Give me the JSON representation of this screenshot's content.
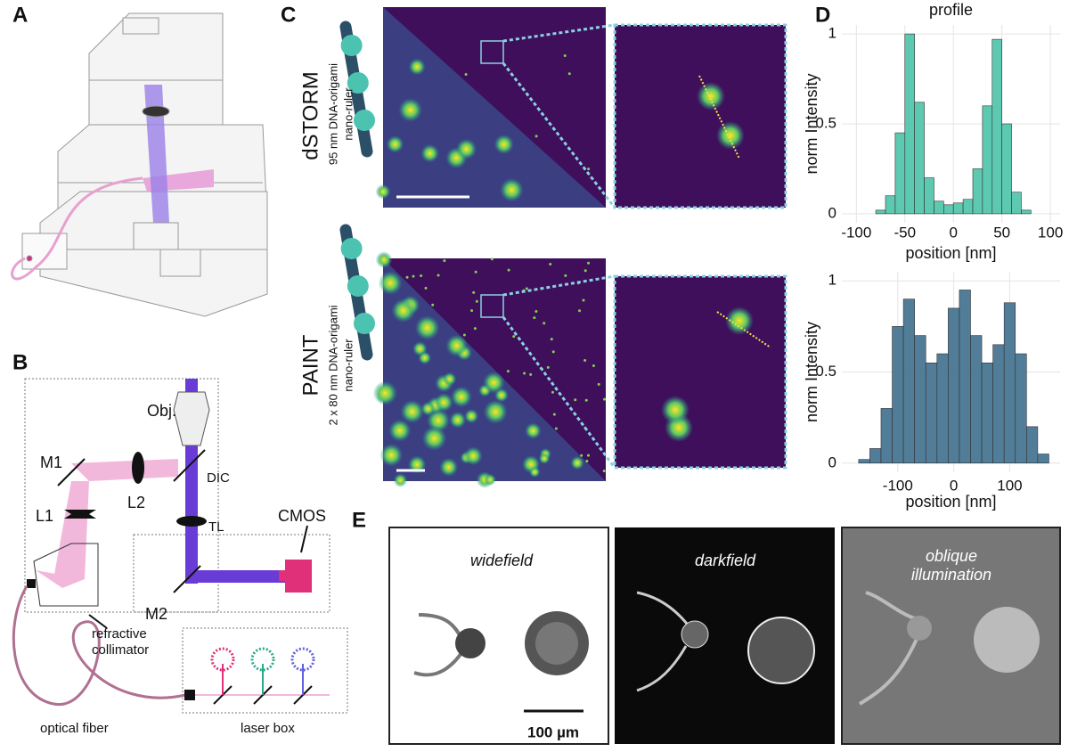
{
  "panel_labels": [
    "A",
    "B",
    "C",
    "D",
    "E"
  ],
  "panel_b": {
    "m1": "M1",
    "l1": "L1",
    "l2": "L2",
    "obj": "Obj.",
    "dic": "DIC",
    "tl": "TL",
    "cmos": "CMOS",
    "m2": "M2",
    "collimator": [
      "refractive",
      "collimator"
    ],
    "fiber": "optical fiber",
    "laser_box": "laser box"
  },
  "panel_c": {
    "rows": [
      {
        "method": "dSTORM",
        "sample": [
          "95 nm DNA-origami",
          "nano-ruler"
        ]
      },
      {
        "method": "PAINT",
        "sample": [
          "2 x 80 nm DNA-origami",
          "nano-ruler"
        ]
      }
    ]
  },
  "chart_data": [
    {
      "type": "histogram",
      "title": "profile",
      "x_label": "position [nm]",
      "y_label": "norm Intensity",
      "color": "#4cc3a8",
      "grid": true,
      "bins": [
        -80,
        -70,
        -60,
        -50,
        -40,
        -30,
        -20,
        -10,
        0,
        10,
        20,
        30,
        40,
        50,
        60,
        70,
        80
      ],
      "values": [
        0.02,
        0.1,
        0.45,
        1.0,
        0.62,
        0.2,
        0.07,
        0.05,
        0.06,
        0.08,
        0.25,
        0.6,
        0.97,
        0.5,
        0.12,
        0.02
      ],
      "xlim": [
        -115,
        110
      ],
      "xticks": [
        -100,
        -50,
        0,
        50,
        100
      ],
      "ylim": [
        -0.05,
        1.05
      ],
      "yticks": [
        0,
        0.5,
        1
      ]
    },
    {
      "type": "histogram",
      "x_label": "position [nm]",
      "y_label": "norm Intensity",
      "color": "#3e6f8e",
      "grid": true,
      "bins": [
        -170,
        -150,
        -130,
        -110,
        -90,
        -70,
        -50,
        -30,
        -10,
        10,
        30,
        50,
        70,
        90,
        110,
        130,
        150,
        170
      ],
      "values": [
        0.02,
        0.08,
        0.3,
        0.75,
        0.9,
        0.7,
        0.55,
        0.6,
        0.85,
        0.95,
        0.7,
        0.55,
        0.65,
        0.88,
        0.6,
        0.2,
        0.05
      ],
      "xlim": [
        -200,
        190
      ],
      "xticks": [
        -100,
        0,
        100
      ],
      "ylim": [
        -0.05,
        1.05
      ],
      "yticks": [
        0,
        0.5,
        1
      ]
    }
  ],
  "panel_e": {
    "images": [
      [
        "widefield"
      ],
      [
        "darkfield"
      ],
      [
        "oblique",
        "illumination"
      ]
    ],
    "scale_bar": "100 µm"
  }
}
